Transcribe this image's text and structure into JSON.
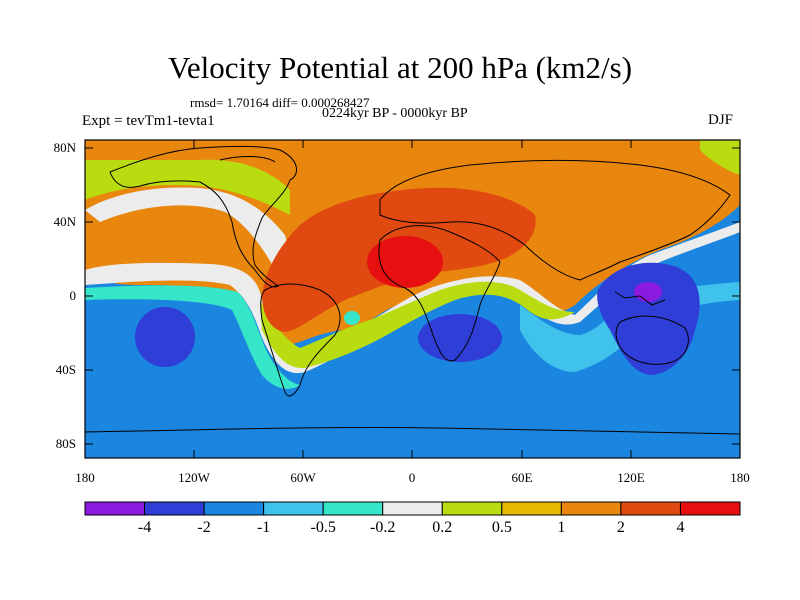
{
  "title": "Velocity Potential at 200 hPa (km2/s)",
  "rmsd_label": "rmsd= 1.70164 diff= 0.000268427",
  "period_label": "0224kyr BP - 0000kyr BP",
  "experiment_label": "Expt = tevTm1-tevta1",
  "season_label": "DJF",
  "lat_ticks": [
    "80N",
    "40N",
    "0",
    "40S",
    "80S"
  ],
  "lon_ticks": [
    "180",
    "120W",
    "60W",
    "0",
    "60E",
    "120E",
    "180"
  ],
  "colorbar": {
    "labels": [
      "-4",
      "-2",
      "-1",
      "-0.5",
      "-0.2",
      "0.2",
      "0.5",
      "1",
      "2",
      "4"
    ],
    "colors": [
      "#8a1ae0",
      "#2e3ed6",
      "#1a86e0",
      "#3fc2ec",
      "#35e6c8",
      "#ececec",
      "#b8dc10",
      "#e6b800",
      "#e8860e",
      "#e04a10",
      "#e61010"
    ]
  }
}
